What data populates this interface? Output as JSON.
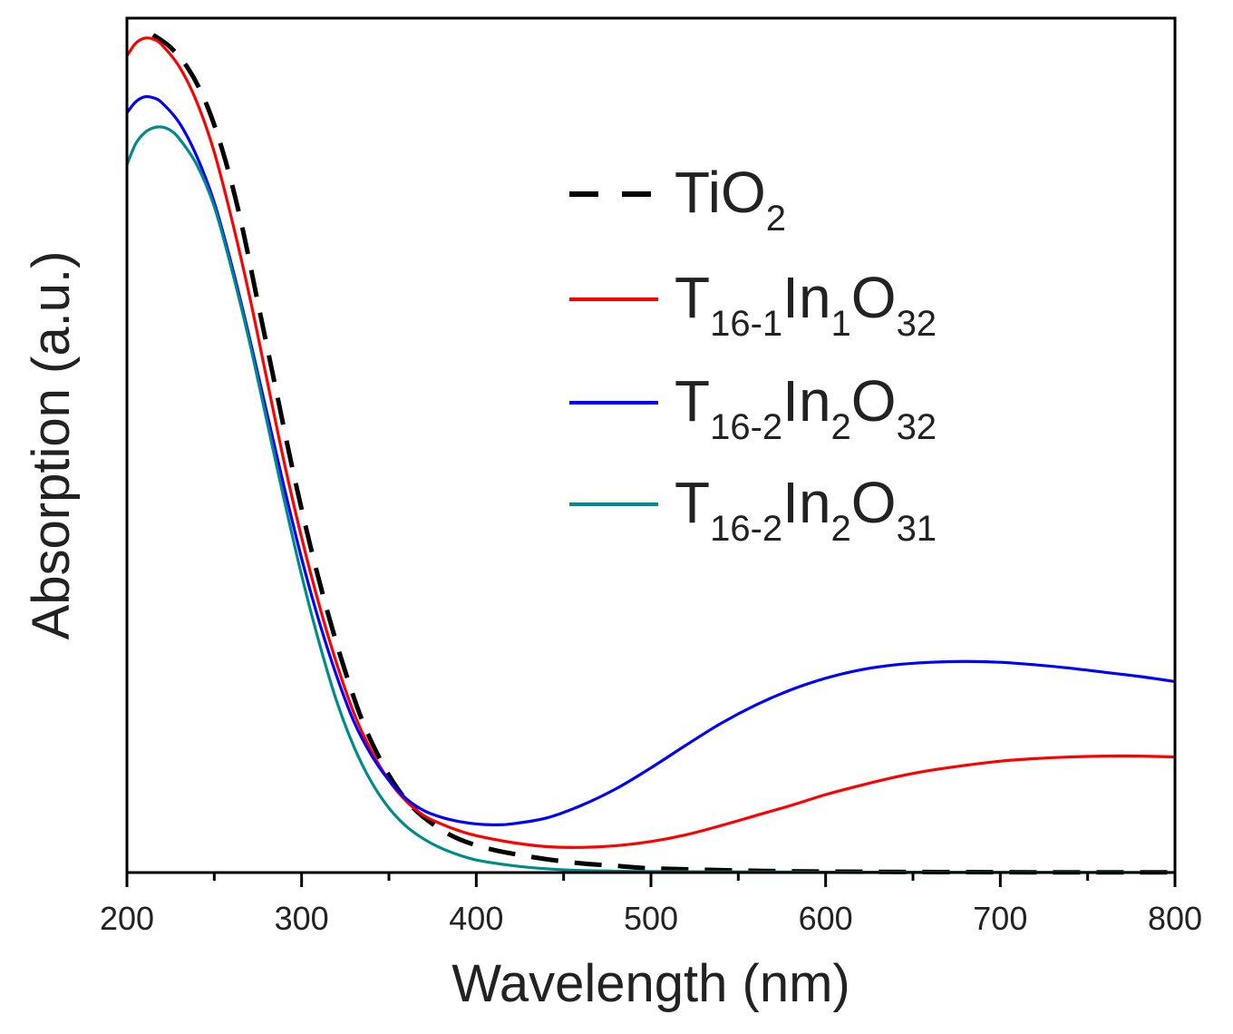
{
  "chart_data": {
    "type": "line",
    "title": "",
    "xlabel": "Wavelength (nm)",
    "ylabel": "Absorption (a.u.)",
    "xlim": [
      200,
      800
    ],
    "ylim": [
      0,
      1.02
    ],
    "xticks": [
      200,
      300,
      400,
      500,
      600,
      700,
      800
    ],
    "x_minor_step": 50,
    "grid": false,
    "legend_position": "top-right",
    "series": [
      {
        "name": "TiO2",
        "legend": [
          {
            "t": "TiO",
            "s": false
          },
          {
            "t": "2",
            "s": true
          }
        ],
        "color": "#000000",
        "dash": "dashed",
        "points": [
          [
            215,
            1.0
          ],
          [
            225,
            0.985
          ],
          [
            235,
            0.96
          ],
          [
            245,
            0.92
          ],
          [
            255,
            0.86
          ],
          [
            265,
            0.78
          ],
          [
            275,
            0.68
          ],
          [
            285,
            0.58
          ],
          [
            295,
            0.48
          ],
          [
            305,
            0.39
          ],
          [
            315,
            0.31
          ],
          [
            325,
            0.24
          ],
          [
            335,
            0.18
          ],
          [
            345,
            0.135
          ],
          [
            355,
            0.1
          ],
          [
            365,
            0.075
          ],
          [
            375,
            0.058
          ],
          [
            385,
            0.045
          ],
          [
            395,
            0.036
          ],
          [
            410,
            0.027
          ],
          [
            425,
            0.021
          ],
          [
            440,
            0.016
          ],
          [
            460,
            0.011
          ],
          [
            480,
            0.008
          ],
          [
            500,
            0.005
          ],
          [
            550,
            0.0025
          ],
          [
            600,
            0.0012
          ],
          [
            700,
            0.0004
          ],
          [
            800,
            0.0002
          ]
        ]
      },
      {
        "name": "T16-1In1O32",
        "legend": [
          {
            "t": "T",
            "s": false
          },
          {
            "t": "16-1",
            "s": true
          },
          {
            "t": "In",
            "s": false
          },
          {
            "t": "1",
            "s": true
          },
          {
            "t": "O",
            "s": false
          },
          {
            "t": "32",
            "s": true
          }
        ],
        "color": "#ff0000",
        "dash": "solid",
        "points": [
          [
            200,
            0.975
          ],
          [
            205,
            0.99
          ],
          [
            210,
            0.996
          ],
          [
            215,
            0.995
          ],
          [
            220,
            0.988
          ],
          [
            230,
            0.962
          ],
          [
            240,
            0.92
          ],
          [
            250,
            0.86
          ],
          [
            260,
            0.78
          ],
          [
            270,
            0.69
          ],
          [
            280,
            0.59
          ],
          [
            290,
            0.49
          ],
          [
            300,
            0.4
          ],
          [
            310,
            0.32
          ],
          [
            320,
            0.25
          ],
          [
            330,
            0.19
          ],
          [
            340,
            0.145
          ],
          [
            350,
            0.11
          ],
          [
            360,
            0.085
          ],
          [
            370,
            0.068
          ],
          [
            380,
            0.058
          ],
          [
            390,
            0.05
          ],
          [
            400,
            0.044
          ],
          [
            420,
            0.036
          ],
          [
            440,
            0.031
          ],
          [
            460,
            0.03
          ],
          [
            480,
            0.032
          ],
          [
            500,
            0.037
          ],
          [
            520,
            0.045
          ],
          [
            540,
            0.056
          ],
          [
            560,
            0.068
          ],
          [
            580,
            0.08
          ],
          [
            600,
            0.093
          ],
          [
            620,
            0.104
          ],
          [
            640,
            0.114
          ],
          [
            660,
            0.122
          ],
          [
            680,
            0.128
          ],
          [
            700,
            0.133
          ],
          [
            720,
            0.136
          ],
          [
            740,
            0.138
          ],
          [
            760,
            0.139
          ],
          [
            780,
            0.139
          ],
          [
            800,
            0.138
          ]
        ]
      },
      {
        "name": "T16-2In2O32",
        "legend": [
          {
            "t": "T",
            "s": false
          },
          {
            "t": "16-2",
            "s": true
          },
          {
            "t": "In",
            "s": false
          },
          {
            "t": "2",
            "s": true
          },
          {
            "t": "O",
            "s": false
          },
          {
            "t": "32",
            "s": true
          }
        ],
        "color": "#0000ff",
        "dash": "solid",
        "points": [
          [
            200,
            0.907
          ],
          [
            205,
            0.92
          ],
          [
            210,
            0.926
          ],
          [
            215,
            0.925
          ],
          [
            220,
            0.919
          ],
          [
            230,
            0.895
          ],
          [
            240,
            0.855
          ],
          [
            250,
            0.8
          ],
          [
            260,
            0.725
          ],
          [
            270,
            0.64
          ],
          [
            280,
            0.55
          ],
          [
            290,
            0.46
          ],
          [
            300,
            0.375
          ],
          [
            310,
            0.3
          ],
          [
            320,
            0.235
          ],
          [
            330,
            0.18
          ],
          [
            340,
            0.14
          ],
          [
            350,
            0.11
          ],
          [
            360,
            0.088
          ],
          [
            370,
            0.074
          ],
          [
            380,
            0.066
          ],
          [
            390,
            0.061
          ],
          [
            400,
            0.058
          ],
          [
            410,
            0.057
          ],
          [
            420,
            0.058
          ],
          [
            440,
            0.065
          ],
          [
            460,
            0.08
          ],
          [
            480,
            0.1
          ],
          [
            500,
            0.125
          ],
          [
            520,
            0.152
          ],
          [
            540,
            0.178
          ],
          [
            560,
            0.2
          ],
          [
            580,
            0.218
          ],
          [
            600,
            0.232
          ],
          [
            620,
            0.242
          ],
          [
            640,
            0.248
          ],
          [
            660,
            0.251
          ],
          [
            680,
            0.252
          ],
          [
            700,
            0.251
          ],
          [
            720,
            0.248
          ],
          [
            740,
            0.244
          ],
          [
            760,
            0.239
          ],
          [
            780,
            0.234
          ],
          [
            800,
            0.228
          ]
        ]
      },
      {
        "name": "T16-2In2O31",
        "legend": [
          {
            "t": "T",
            "s": false
          },
          {
            "t": "16-2",
            "s": true
          },
          {
            "t": "In",
            "s": false
          },
          {
            "t": "2",
            "s": true
          },
          {
            "t": "O",
            "s": false
          },
          {
            "t": "31",
            "s": true
          }
        ],
        "color": "#008b8b",
        "dash": "solid",
        "points": [
          [
            200,
            0.845
          ],
          [
            205,
            0.87
          ],
          [
            210,
            0.883
          ],
          [
            215,
            0.889
          ],
          [
            220,
            0.89
          ],
          [
            225,
            0.886
          ],
          [
            230,
            0.876
          ],
          [
            240,
            0.845
          ],
          [
            250,
            0.795
          ],
          [
            260,
            0.72
          ],
          [
            270,
            0.635
          ],
          [
            280,
            0.54
          ],
          [
            290,
            0.445
          ],
          [
            300,
            0.355
          ],
          [
            310,
            0.275
          ],
          [
            320,
            0.205
          ],
          [
            330,
            0.15
          ],
          [
            340,
            0.108
          ],
          [
            350,
            0.077
          ],
          [
            360,
            0.055
          ],
          [
            370,
            0.04
          ],
          [
            380,
            0.029
          ],
          [
            390,
            0.021
          ],
          [
            400,
            0.015
          ],
          [
            420,
            0.0085
          ],
          [
            440,
            0.0045
          ],
          [
            460,
            0.0025
          ],
          [
            500,
            0.0012
          ],
          [
            600,
            0.0005
          ],
          [
            800,
            0.0002
          ]
        ]
      }
    ]
  }
}
